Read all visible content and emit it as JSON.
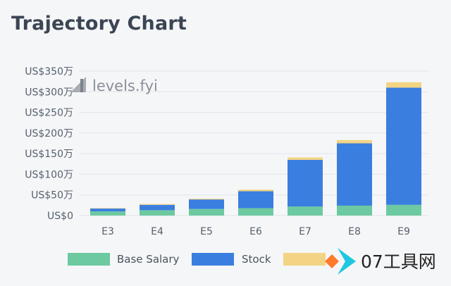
{
  "chart_data": {
    "type": "bar",
    "stacked": true,
    "title": "Trajectory Chart",
    "categories": [
      "E3",
      "E4",
      "E5",
      "E6",
      "E7",
      "E8",
      "E9"
    ],
    "series": [
      {
        "name": "Base Salary",
        "color": "#6cc9a0",
        "values": [
          10,
          13,
          16,
          18,
          22,
          24,
          26
        ]
      },
      {
        "name": "Stock",
        "color": "#3a7ee0",
        "values": [
          7,
          13,
          23,
          41,
          113,
          151,
          284
        ]
      },
      {
        "name": "",
        "color": "#f2d484",
        "values": [
          1,
          2,
          2,
          4,
          6,
          8,
          13
        ]
      }
    ],
    "y_ticks": [
      {
        "value": 0,
        "label": "US$0"
      },
      {
        "value": 50,
        "label": "US$50万"
      },
      {
        "value": 100,
        "label": "US$100万"
      },
      {
        "value": 150,
        "label": "US$150万"
      },
      {
        "value": 200,
        "label": "US$200万"
      },
      {
        "value": 250,
        "label": "US$250万"
      },
      {
        "value": 300,
        "label": "US$300万"
      },
      {
        "value": 350,
        "label": "US$350万"
      }
    ],
    "ylim": [
      0,
      350
    ],
    "grid": true,
    "legend_position": "bottom"
  },
  "watermark": {
    "text": "levels.fyi",
    "icon": "bar-chart-icon"
  },
  "logo": {
    "text": "07工具网",
    "icon": "diamond-arrow-icon",
    "colors": [
      "#ff7a2a",
      "#1ec8e0"
    ]
  },
  "colors": {
    "grid": "#e1e4e8",
    "text": "#55606e",
    "title": "#3b4554"
  }
}
